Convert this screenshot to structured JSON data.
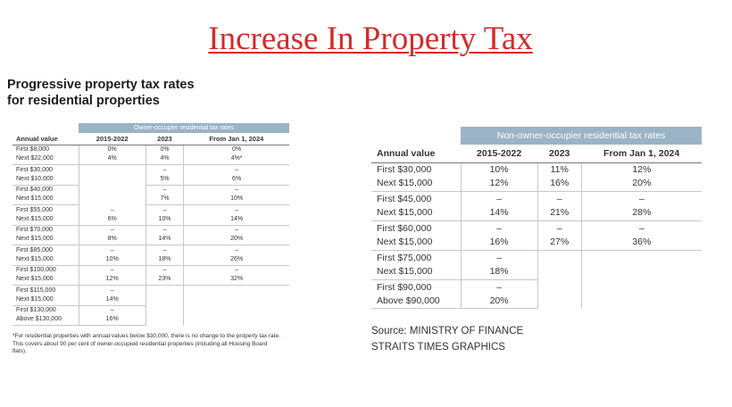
{
  "slide": {
    "title": "Increase In Property Tax"
  },
  "left": {
    "heading_line1": "Progressive property tax rates",
    "heading_line2": "for residential properties",
    "band": "Owner-occupier residential tax rates",
    "headers": [
      "Annual value",
      "2015-2022",
      "2023",
      "From Jan 1, 2024"
    ],
    "rows": [
      {
        "l1": "First $8,000",
        "l2": "Next $22,000",
        "a1": "0%",
        "a2": "4%",
        "b1": "0%",
        "b2": "4%",
        "c1": "0%",
        "c2": "4%*"
      },
      {
        "l1": "First $30,000",
        "l2": "Next $10,000",
        "a1": "",
        "a2": "",
        "b1": "–",
        "b2": "5%",
        "c1": "–",
        "c2": "6%"
      },
      {
        "l1": "First $40,000",
        "l2": "Next $15,000",
        "a1": "",
        "a2": "",
        "b1": "–",
        "b2": "7%",
        "c1": "–",
        "c2": "10%"
      },
      {
        "l1": "First $55,000",
        "l2": "Next $15,000",
        "a1": "–",
        "a2": "6%",
        "b1": "–",
        "b2": "10%",
        "c1": "–",
        "c2": "14%"
      },
      {
        "l1": "First $70,000",
        "l2": "Next $15,000",
        "a1": "–",
        "a2": "8%",
        "b1": "–",
        "b2": "14%",
        "c1": "–",
        "c2": "20%"
      },
      {
        "l1": "First $85,000",
        "l2": "Next $15,000",
        "a1": "–",
        "a2": "10%",
        "b1": "–",
        "b2": "18%",
        "c1": "–",
        "c2": "26%"
      },
      {
        "l1": "First $100,000",
        "l2": "Next $15,000",
        "a1": "–",
        "a2": "12%",
        "b1": "–",
        "b2": "23%",
        "c1": "–",
        "c2": "32%"
      },
      {
        "l1": "First $115,000",
        "l2": "Next $15,000",
        "a1": "–",
        "a2": "14%",
        "b1": "",
        "b2": "",
        "c1": "",
        "c2": ""
      },
      {
        "l1": "First $130,000",
        "l2": "Above $130,000",
        "a1": "–",
        "a2": "16%",
        "b1": "",
        "b2": "",
        "c1": "",
        "c2": ""
      }
    ],
    "note": "*For residential properties with annual values below $30,000, there is no change to the property tax rate. This covers about 90 per cent of owner-occupied residential properties (including all Housing Board flats)."
  },
  "right": {
    "band": "Non-owner-occupier residential tax rates",
    "headers": [
      "Annual value",
      "2015-2022",
      "2023",
      "From Jan 1, 2024"
    ],
    "rows": [
      {
        "l1": "First $30,000",
        "l2": "Next $15,000",
        "a1": "10%",
        "a2": "12%",
        "b1": "11%",
        "b2": "16%",
        "c1": "12%",
        "c2": "20%"
      },
      {
        "l1": "First $45,000",
        "l2": "Next $15,000",
        "a1": "–",
        "a2": "14%",
        "b1": "–",
        "b2": "21%",
        "c1": "–",
        "c2": "28%"
      },
      {
        "l1": "First $60,000",
        "l2": "Next $15,000",
        "a1": "–",
        "a2": "16%",
        "b1": "–",
        "b2": "27%",
        "c1": "–",
        "c2": "36%"
      },
      {
        "l1": "First $75,000",
        "l2": "Next $15,000",
        "a1": "–",
        "a2": "18%",
        "b1": "",
        "b2": "",
        "c1": "",
        "c2": ""
      },
      {
        "l1": "First $90,000",
        "l2": "Above $90,000",
        "a1": "–",
        "a2": "20%",
        "b1": "",
        "b2": "",
        "c1": "",
        "c2": ""
      }
    ],
    "source_line1": "Source: MINISTRY OF FINANCE",
    "source_line2": "STRAITS TIMES GRAPHICS"
  }
}
